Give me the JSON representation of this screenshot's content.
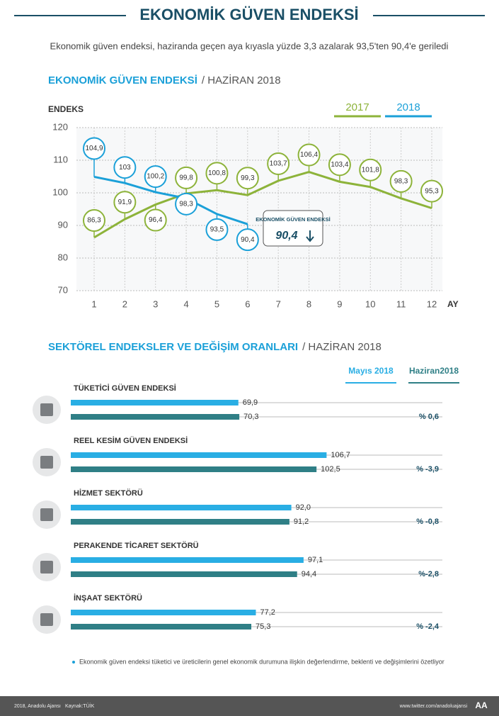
{
  "header": {
    "title": "EKONOMİK GÜVEN ENDEKSİ",
    "subtitle": "Ekonomik güven endeksi, haziranda geçen aya kıyasla yüzde 3,3 azalarak 93,5'ten 90,4'e geriledi"
  },
  "chart_data": [
    {
      "type": "line",
      "title": "EKONOMİK GÜVEN ENDEKSİ",
      "period": "/ HAZİRAN 2018",
      "ylabel": "ENDEKS",
      "xlabel": "AY",
      "categories": [
        "1",
        "2",
        "3",
        "4",
        "5",
        "6",
        "7",
        "8",
        "9",
        "10",
        "11",
        "12"
      ],
      "ylim": [
        70,
        120
      ],
      "yticks": [
        70,
        80,
        90,
        100,
        110,
        120
      ],
      "grid": true,
      "series": [
        {
          "name": "2017",
          "color": "#8db33a",
          "values": [
            86.3,
            91.9,
            96.4,
            99.8,
            100.8,
            99.3,
            103.7,
            106.4,
            103.4,
            101.8,
            98.3,
            95.3
          ],
          "value_labels": [
            "86,3",
            "91,9",
            "96,4",
            "99,8",
            "100,8",
            "99,3",
            "103,7",
            "106,4",
            "103,4",
            "101,8",
            "98,3",
            "95,3"
          ]
        },
        {
          "name": "2018",
          "color": "#1ba0d8",
          "values": [
            104.9,
            103,
            100.2,
            98.3,
            93.5,
            90.4,
            null,
            null,
            null,
            null,
            null,
            null
          ],
          "value_labels": [
            "104,9",
            "103",
            "100,2",
            "98,3",
            "93,5",
            "90,4",
            null,
            null,
            null,
            null,
            null,
            null
          ]
        }
      ],
      "annotation": {
        "text": "EKONOMİK GÜVEN ENDEKSİ",
        "value_label": "90,4"
      }
    },
    {
      "type": "barh",
      "title": "SEKTÖREL ENDEKSLER VE DEĞİŞİM ORANLARI",
      "period": "/ HAZİRAN 2018",
      "categories": [
        "TÜKETİCİ GÜVEN ENDEKSİ",
        "REEL KESİM GÜVEN ENDEKSİ",
        "HİZMET SEKTÖRÜ",
        "PERAKENDE TİCARET SEKTÖRÜ",
        "İNŞAAT SEKTÖRÜ"
      ],
      "xlim": [
        0,
        155
      ],
      "series": [
        {
          "name": "Mayıs 2018",
          "color": "#29aee4",
          "values": [
            69.9,
            106.7,
            92.0,
            97.1,
            77.2
          ],
          "value_labels": [
            "69,9",
            "106,7",
            "92,0",
            "97,1",
            "77,2"
          ]
        },
        {
          "name": "Haziran2018",
          "color": "#2f7f86",
          "values": [
            70.3,
            102.5,
            91.2,
            94.4,
            75.3
          ],
          "value_labels": [
            "70,3",
            "102,5",
            "91,2",
            "94,4",
            "75,3"
          ]
        }
      ],
      "changes": [
        0.6,
        -3.9,
        -0.8,
        -2.8,
        -2.4
      ],
      "change_labels": [
        "% 0,6",
        "% -3,9",
        "% -0,8",
        "%-2,8",
        "% -2,4"
      ]
    }
  ],
  "footnote": "Ekonomik güven endeksi tüketici ve üreticilerin genel ekonomik durumuna ilişkin değerlendirme, beklenti ve değişimlerini özetliyor",
  "footer": {
    "copyright": "2018, Anadolu Ajansı",
    "source": "Kaynak:TÜİK",
    "twitter": "www.twitter.com/anadoluajansi",
    "logo": "AA"
  }
}
